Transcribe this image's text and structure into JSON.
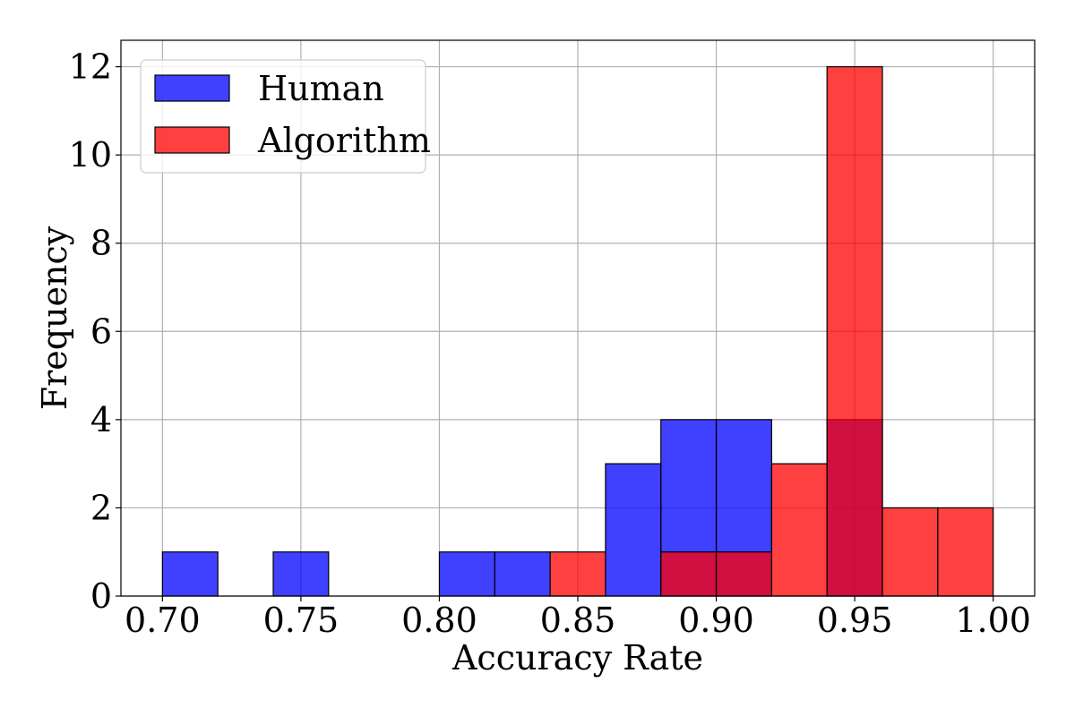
{
  "chart_data": {
    "type": "bar",
    "subtype": "overlapping-histogram",
    "xlabel": "Accuracy Rate",
    "ylabel": "Frequency",
    "xlim": [
      0.685,
      1.015
    ],
    "ylim": [
      0,
      12.6
    ],
    "xticks": [
      0.7,
      0.75,
      0.8,
      0.85,
      0.9,
      0.95,
      1.0
    ],
    "xtick_labels": [
      "0.70",
      "0.75",
      "0.80",
      "0.85",
      "0.90",
      "0.95",
      "1.00"
    ],
    "yticks": [
      0,
      2,
      4,
      6,
      8,
      10,
      12
    ],
    "ytick_labels": [
      "0",
      "2",
      "4",
      "6",
      "8",
      "10",
      "12"
    ],
    "grid": true,
    "legend_position": "top-left",
    "bin_edges": [
      0.7,
      0.72,
      0.74,
      0.76,
      0.78,
      0.8,
      0.82,
      0.84,
      0.86,
      0.88,
      0.9,
      0.92,
      0.94,
      0.96,
      0.98,
      1.0
    ],
    "series": [
      {
        "name": "Human",
        "color": "#0000ff",
        "opacity": 0.75,
        "values": [
          1,
          0,
          1,
          0,
          0,
          1,
          1,
          0,
          3,
          4,
          4,
          0,
          4,
          0,
          0
        ]
      },
      {
        "name": "Algorithm",
        "color": "#ff0000",
        "opacity": 0.75,
        "values": [
          0,
          0,
          0,
          0,
          0,
          0,
          0,
          1,
          0,
          1,
          1,
          3,
          12,
          2,
          2
        ]
      }
    ]
  }
}
